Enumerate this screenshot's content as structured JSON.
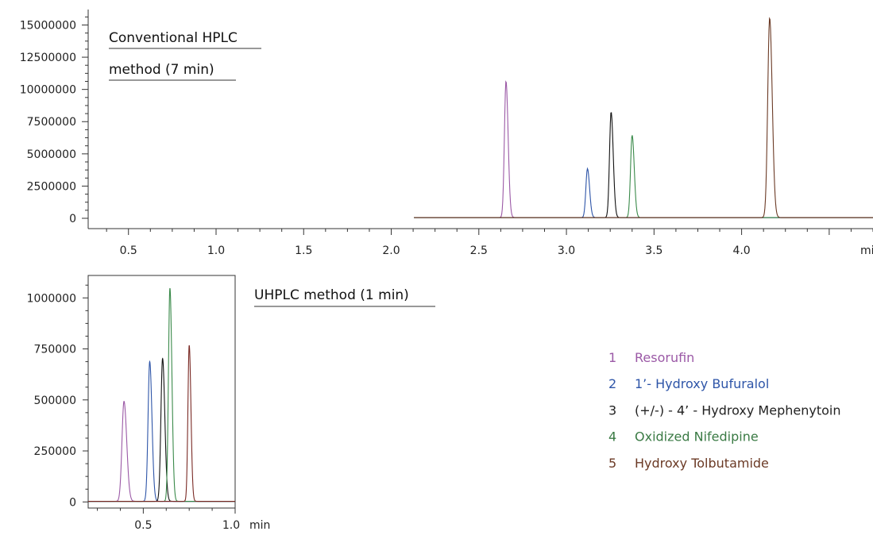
{
  "chart_data": [
    {
      "type": "line",
      "title_lines": [
        "Conventional HPLC",
        "method (7 min)"
      ],
      "xlabel": "min",
      "ylabel": "",
      "xlim": [
        0.27,
        4.75
      ],
      "ylim": [
        -800000,
        16200000
      ],
      "x_ticks": [
        0.5,
        1.0,
        1.5,
        2.0,
        2.5,
        3.0,
        3.5,
        4.0
      ],
      "x_tick_labels": [
        "0.5",
        "1.0",
        "1.5",
        "2.0",
        "2.5",
        "3.0",
        "3.5",
        "4.0"
      ],
      "y_ticks": [
        0,
        2500000,
        5000000,
        7500000,
        10000000,
        12500000,
        15000000
      ],
      "y_tick_labels": [
        "0",
        "2500000",
        "5000000",
        "7500000",
        "10000000",
        "12500000",
        "15000000"
      ],
      "x_range": [
        2.13,
        4.75
      ],
      "series": [
        {
          "id": 1,
          "color": "#9b59a6",
          "peak_x": 2.655,
          "peak_y": 10600000,
          "width": 0.009,
          "baseline": 60000
        },
        {
          "id": 2,
          "color": "#2e55a8",
          "peak_x": 3.12,
          "peak_y": 3800000,
          "width": 0.009,
          "baseline": 60000
        },
        {
          "id": 3,
          "color": "#111111",
          "peak_x": 3.255,
          "peak_y": 8200000,
          "width": 0.009,
          "baseline": 60000
        },
        {
          "id": 4,
          "color": "#3a8a4a",
          "peak_x": 3.375,
          "peak_y": 6400000,
          "width": 0.009,
          "baseline": 60000
        },
        {
          "id": 5,
          "color": "#6b3a25",
          "peak_x": 4.16,
          "peak_y": 15500000,
          "width": 0.011,
          "baseline": 60000
        }
      ]
    },
    {
      "type": "line",
      "title_lines": [
        "UHPLC method (1 min)"
      ],
      "xlabel": "min",
      "ylabel": "",
      "xlim": [
        0.2,
        1.0
      ],
      "ylim": [
        -30000,
        1110000
      ],
      "x_ticks": [
        0.5,
        1.0
      ],
      "x_tick_labels": [
        "0.5",
        "1.0"
      ],
      "y_ticks": [
        0,
        250000,
        500000,
        750000,
        1000000
      ],
      "y_tick_labels": [
        "0",
        "250000",
        "500000",
        "750000",
        "1000000"
      ],
      "x_range": [
        0.2,
        1.0
      ],
      "series": [
        {
          "id": 1,
          "color": "#9b59a6",
          "peak_x": 0.395,
          "peak_y": 490000,
          "width": 0.011,
          "baseline": 3000
        },
        {
          "id": 2,
          "color": "#2e55a8",
          "peak_x": 0.535,
          "peak_y": 685000,
          "width": 0.009,
          "baseline": 3000
        },
        {
          "id": 3,
          "color": "#111111",
          "peak_x": 0.605,
          "peak_y": 700000,
          "width": 0.009,
          "baseline": 3000
        },
        {
          "id": 4,
          "color": "#3a8a4a",
          "peak_x": 0.645,
          "peak_y": 1045000,
          "width": 0.008,
          "baseline": 3000
        },
        {
          "id": 5,
          "color": "#7a2a25",
          "peak_x": 0.75,
          "peak_y": 765000,
          "width": 0.007,
          "baseline": 3000
        }
      ]
    }
  ],
  "legend": [
    {
      "num": "1",
      "name": "Resorufin",
      "color": "#9b59a6"
    },
    {
      "num": "2",
      "name": "1’- Hydroxy Bufuralol",
      "color": "#2e55a8"
    },
    {
      "num": "3",
      "name": "(+/-) - 4’ - Hydroxy Mephenytoin",
      "color": "#222222"
    },
    {
      "num": "4",
      "name": "Oxidized Nifedipine",
      "color": "#3a7a44"
    },
    {
      "num": "5",
      "name": "Hydroxy Tolbutamide",
      "color": "#6b3a25"
    }
  ],
  "colors": {
    "axis": "#333333",
    "title_underline": "#333333",
    "highlight_tick": "#c0202a"
  }
}
